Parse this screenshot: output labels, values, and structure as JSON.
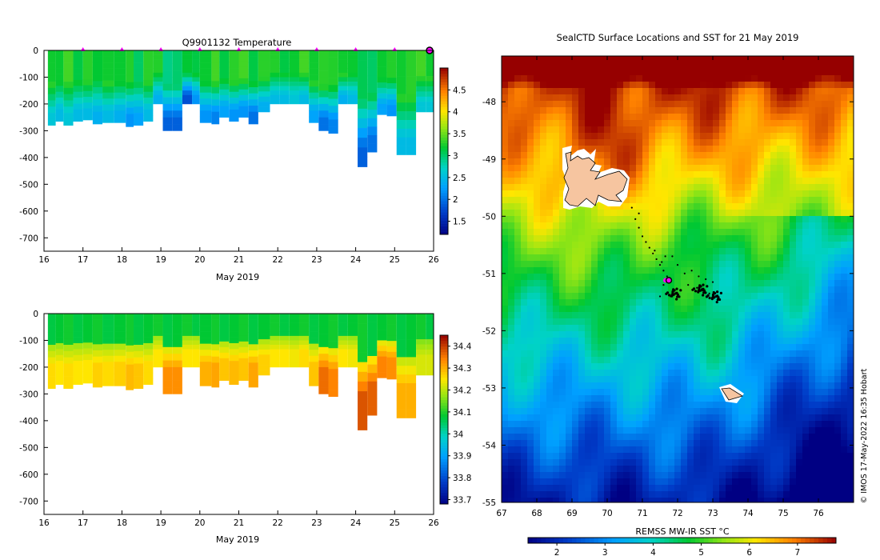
{
  "chart_data": [
    {
      "type": "heatmap",
      "title": "Q9901132  Temperature",
      "xlabel": "May 2019",
      "xlim": [
        16,
        26
      ],
      "ylim": [
        -750,
        0
      ],
      "xticks": [
        "16",
        "17",
        "18",
        "19",
        "20",
        "21",
        "22",
        "23",
        "24",
        "25",
        "26"
      ],
      "yticks": [
        "0",
        "-100",
        "-200",
        "-300",
        "-400",
        "-500",
        "-600",
        "-700"
      ],
      "colorbar": {
        "min": 1.2,
        "max": 5.0,
        "ticks": [
          "1.5",
          "2",
          "2.5",
          "3",
          "3.5",
          "4",
          "4.5"
        ]
      },
      "markers_x": [
        17,
        18,
        19,
        20,
        21,
        22,
        23,
        24,
        25
      ],
      "profiles": {
        "x": [
          16.1,
          16.3,
          16.5,
          16.75,
          17.0,
          17.25,
          17.5,
          17.8,
          18.1,
          18.3,
          18.55,
          18.8,
          19.05,
          19.3,
          19.55,
          19.8,
          20.0,
          20.3,
          20.5,
          20.75,
          21.0,
          21.25,
          21.5,
          21.8,
          22.05,
          22.3,
          22.55,
          22.8,
          23.05,
          23.3,
          23.55,
          23.8,
          24.05,
          24.3,
          24.55,
          24.8,
          25.05,
          25.3,
          25.55,
          25.8
        ],
        "depth": [
          280,
          265,
          280,
          265,
          260,
          275,
          270,
          270,
          285,
          280,
          265,
          200,
          300,
          300,
          200,
          200,
          270,
          275,
          250,
          265,
          250,
          275,
          230,
          200,
          200,
          200,
          200,
          270,
          300,
          310,
          200,
          200,
          435,
          380,
          240,
          245,
          390,
          390,
          230,
          230
        ],
        "mixed_temp": [
          3.3,
          3.2,
          3.3,
          3.2,
          3.3,
          3.1,
          3.3,
          3.2,
          3.2,
          3.1,
          3.3,
          3.2,
          3.0,
          3.0,
          3.1,
          3.2,
          3.2,
          3.3,
          3.2,
          3.3,
          3.3,
          3.2,
          3.3,
          3.2,
          3.2,
          3.2,
          3.3,
          3.3,
          3.3,
          3.2,
          3.3,
          3.2,
          3.0,
          3.1,
          3.2,
          3.2,
          3.3,
          3.3,
          3.3,
          3.3
        ],
        "deep_temp": [
          2.6,
          2.5,
          2.6,
          2.5,
          2.5,
          2.4,
          2.5,
          2.4,
          2.2,
          2.3,
          2.5,
          2.4,
          1.9,
          1.9,
          1.8,
          2.2,
          2.2,
          2.1,
          2.3,
          2.2,
          2.2,
          2.0,
          2.4,
          2.5,
          2.5,
          2.6,
          2.5,
          2.3,
          2.0,
          2.1,
          2.4,
          2.5,
          1.9,
          2.0,
          2.3,
          2.2,
          2.5,
          2.5,
          2.6,
          2.6
        ]
      }
    },
    {
      "type": "heatmap",
      "title": "",
      "xlabel": "May 2019",
      "xlim": [
        16,
        26
      ],
      "ylim": [
        -750,
        0
      ],
      "xticks": [
        "16",
        "17",
        "18",
        "19",
        "20",
        "21",
        "22",
        "23",
        "24",
        "25",
        "26"
      ],
      "yticks": [
        "0",
        "-100",
        "-200",
        "-300",
        "-400",
        "-500",
        "-600",
        "-700"
      ],
      "colorbar": {
        "min": 33.68,
        "max": 34.45,
        "ticks": [
          "33.7",
          "33.8",
          "33.9",
          "34",
          "34.1",
          "34.2",
          "34.3",
          "34.4"
        ]
      },
      "profiles": {
        "deep_sal": [
          34.26,
          34.25,
          34.26,
          34.25,
          34.25,
          34.27,
          34.26,
          34.27,
          34.29,
          34.28,
          34.26,
          34.25,
          34.33,
          34.33,
          34.25,
          34.25,
          34.3,
          34.31,
          34.28,
          34.29,
          34.28,
          34.31,
          34.27,
          34.25,
          34.25,
          34.24,
          34.26,
          34.28,
          34.36,
          34.34,
          34.25,
          34.24,
          34.38,
          34.37,
          34.34,
          34.33,
          34.3,
          34.3,
          34.22,
          34.22
        ]
      }
    },
    {
      "type": "heatmap",
      "title": "SealCTD Surface Locations and SST for 21 May 2019",
      "xlabel": "REMSS MW-IR SST °C",
      "xlim": [
        67,
        77
      ],
      "ylim": [
        -55,
        -47.2
      ],
      "xticks": [
        "67",
        "68",
        "69",
        "70",
        "71",
        "72",
        "73",
        "74",
        "75",
        "76"
      ],
      "yticks": [
        "-48",
        "-49",
        "-50",
        "-51",
        "-52",
        "-53",
        "-54",
        "-55"
      ],
      "colorbar": {
        "min": 1.4,
        "max": 7.8,
        "ticks": [
          "2",
          "3",
          "4",
          "5",
          "6",
          "7"
        ]
      },
      "credit": "© IMOS 17-May-2022 16:35 Hobart",
      "current_position": [
        71.75,
        -51.12
      ],
      "track": [
        [
          70.8,
          -50.05
        ],
        [
          70.9,
          -50.2
        ],
        [
          71.0,
          -50.35
        ],
        [
          71.1,
          -50.45
        ],
        [
          71.2,
          -50.55
        ],
        [
          71.3,
          -50.65
        ],
        [
          71.4,
          -50.75
        ],
        [
          71.5,
          -50.85
        ],
        [
          71.6,
          -50.95
        ],
        [
          71.7,
          -51.05
        ],
        [
          71.55,
          -50.8
        ],
        [
          71.35,
          -50.6
        ],
        [
          71.65,
          -50.7
        ],
        [
          71.85,
          -50.7
        ],
        [
          72.0,
          -50.85
        ],
        [
          72.2,
          -51.0
        ],
        [
          72.4,
          -50.95
        ],
        [
          72.6,
          -51.05
        ],
        [
          72.8,
          -51.1
        ],
        [
          73.0,
          -51.15
        ],
        [
          72.3,
          -51.2
        ],
        [
          72.55,
          -51.25
        ],
        [
          72.7,
          -51.3
        ],
        [
          72.9,
          -51.35
        ],
        [
          73.1,
          -51.4
        ],
        [
          71.9,
          -51.3
        ],
        [
          71.6,
          -51.2
        ],
        [
          71.8,
          -51.4
        ],
        [
          71.5,
          -51.4
        ],
        [
          70.7,
          -49.85
        ],
        [
          70.9,
          -49.95
        ]
      ],
      "clusters": [
        [
          71.9,
          -51.35
        ],
        [
          72.65,
          -51.28
        ],
        [
          73.05,
          -51.4
        ]
      ]
    }
  ],
  "colors": {
    "land": "#f6c5a0",
    "marker": "#ff00ff"
  }
}
